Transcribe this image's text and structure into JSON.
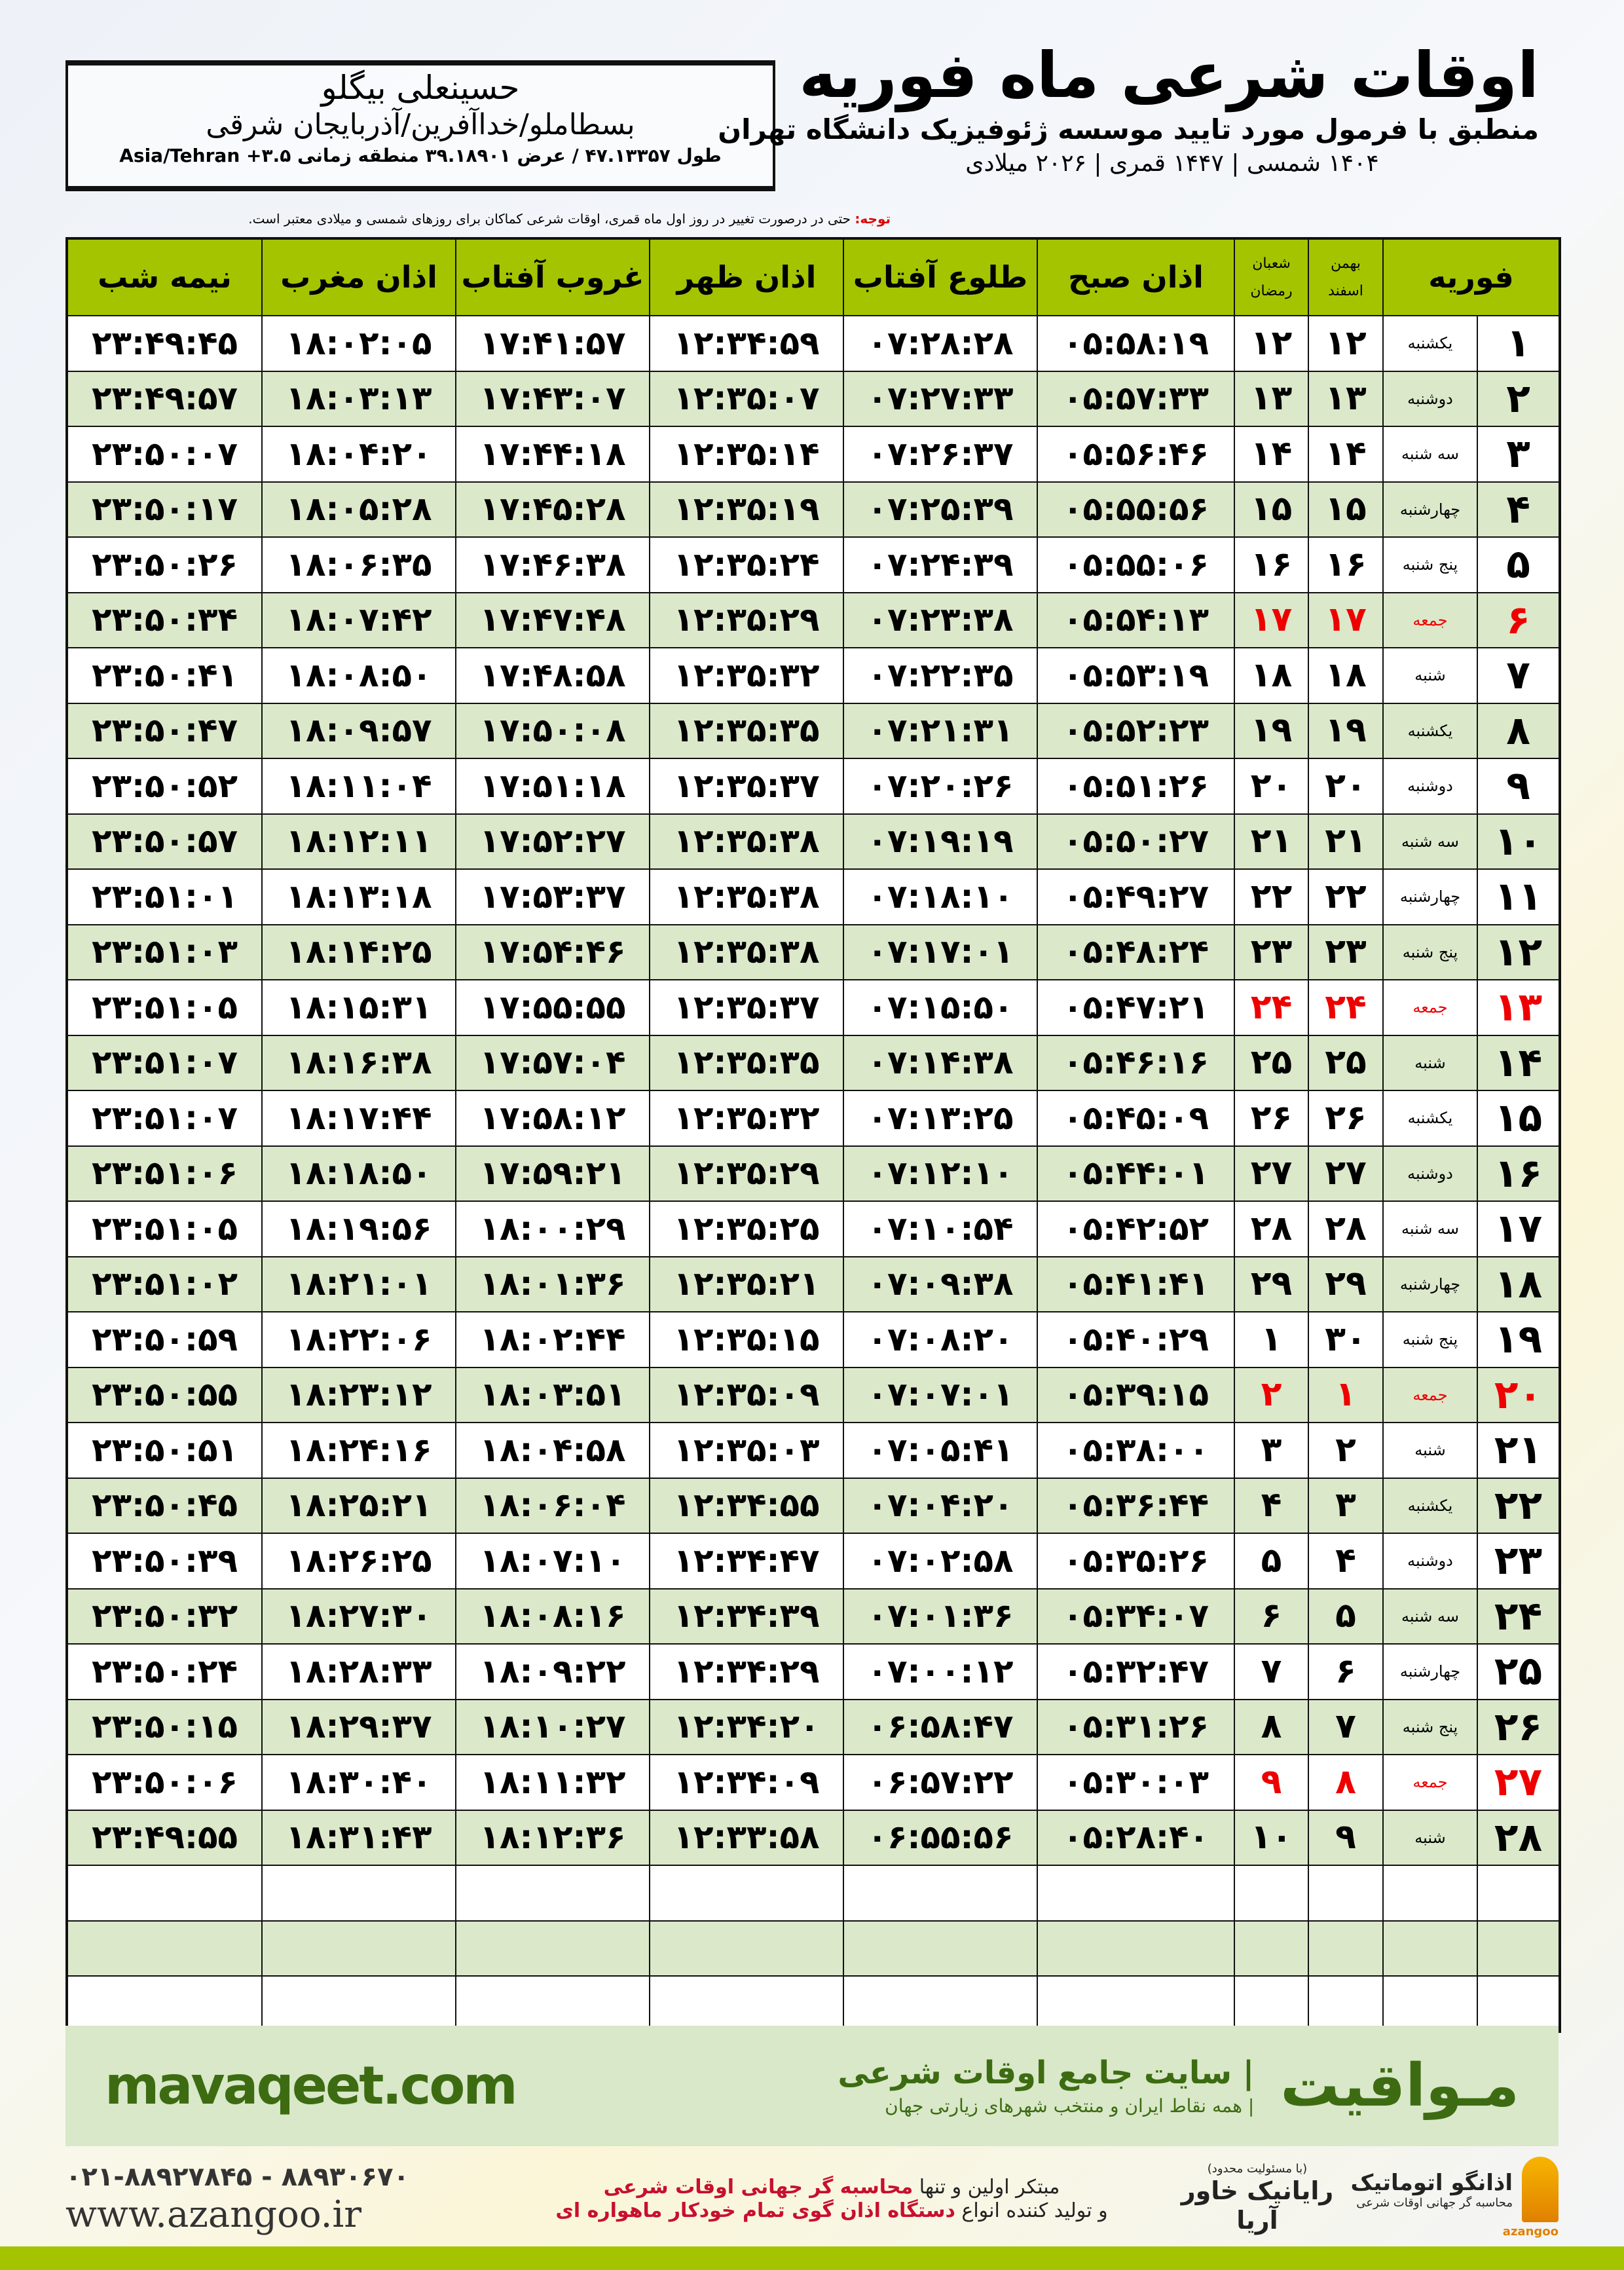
{
  "header": {
    "title": "اوقات شرعی ماه فوریه",
    "subtitle": "منطبق با فرمول مورد تایید موسسه ژئوفیزیک دانشگاه تهران",
    "years": "۱۴۰۴ شمسی | ۱۴۴۷ قمری | ۲۰۲۶ میلادی"
  },
  "location": {
    "name": "حسینعلی بیگلو",
    "place": "بسطاملو/خداآفرین/آذربایجان شرقی",
    "coords": "طول ۴۷.۱۳۳۵۷ / عرض ۳۹.۱۸۹۰۱ منطقه زمانی ۳.۵+ Asia/Tehran"
  },
  "note": {
    "label": "توجه:",
    "text": " حتی در درصورت تغییر در روز اول ماه قمری، اوقات شرعی کماکان برای روزهای شمسی و میلادی معتبر است."
  },
  "table": {
    "headers": {
      "month": "فوریه",
      "shamsi_top": "بهمن",
      "shamsi_bottom": "اسفند",
      "qamari_top": "شعبان",
      "qamari_bottom": "رمضان",
      "sobh": "اذان صبح",
      "tolu": "طلوع آفتاب",
      "zohr": "اذان ظهر",
      "ghurub": "غروب آفتاب",
      "maghrib": "اذان مغرب",
      "nime": "نیمه شب"
    },
    "highlight_color": "#e00000",
    "rows": [
      [
        "۱",
        "یکشنبه",
        "۱۲",
        "۱۲",
        "۰۵:۵۸:۱۹",
        "۰۷:۲۸:۲۸",
        "۱۲:۳۴:۵۹",
        "۱۷:۴۱:۵۷",
        "۱۸:۰۲:۰۵",
        "۲۳:۴۹:۴۵"
      ],
      [
        "۲",
        "دوشنبه",
        "۱۳",
        "۱۳",
        "۰۵:۵۷:۳۳",
        "۰۷:۲۷:۳۳",
        "۱۲:۳۵:۰۷",
        "۱۷:۴۳:۰۷",
        "۱۸:۰۳:۱۳",
        "۲۳:۴۹:۵۷"
      ],
      [
        "۳",
        "سه شنبه",
        "۱۴",
        "۱۴",
        "۰۵:۵۶:۴۶",
        "۰۷:۲۶:۳۷",
        "۱۲:۳۵:۱۴",
        "۱۷:۴۴:۱۸",
        "۱۸:۰۴:۲۰",
        "۲۳:۵۰:۰۷"
      ],
      [
        "۴",
        "چهارشنبه",
        "۱۵",
        "۱۵",
        "۰۵:۵۵:۵۶",
        "۰۷:۲۵:۳۹",
        "۱۲:۳۵:۱۹",
        "۱۷:۴۵:۲۸",
        "۱۸:۰۵:۲۸",
        "۲۳:۵۰:۱۷"
      ],
      [
        "۵",
        "پنج شنبه",
        "۱۶",
        "۱۶",
        "۰۵:۵۵:۰۶",
        "۰۷:۲۴:۳۹",
        "۱۲:۳۵:۲۴",
        "۱۷:۴۶:۳۸",
        "۱۸:۰۶:۳۵",
        "۲۳:۵۰:۲۶"
      ],
      [
        "۶",
        "جمعه",
        "۱۷",
        "۱۷",
        "۰۵:۵۴:۱۳",
        "۰۷:۲۳:۳۸",
        "۱۲:۳۵:۲۹",
        "۱۷:۴۷:۴۸",
        "۱۸:۰۷:۴۲",
        "۲۳:۵۰:۳۴"
      ],
      [
        "۷",
        "شنبه",
        "۱۸",
        "۱۸",
        "۰۵:۵۳:۱۹",
        "۰۷:۲۲:۳۵",
        "۱۲:۳۵:۳۲",
        "۱۷:۴۸:۵۸",
        "۱۸:۰۸:۵۰",
        "۲۳:۵۰:۴۱"
      ],
      [
        "۸",
        "یکشنبه",
        "۱۹",
        "۱۹",
        "۰۵:۵۲:۲۳",
        "۰۷:۲۱:۳۱",
        "۱۲:۳۵:۳۵",
        "۱۷:۵۰:۰۸",
        "۱۸:۰۹:۵۷",
        "۲۳:۵۰:۴۷"
      ],
      [
        "۹",
        "دوشنبه",
        "۲۰",
        "۲۰",
        "۰۵:۵۱:۲۶",
        "۰۷:۲۰:۲۶",
        "۱۲:۳۵:۳۷",
        "۱۷:۵۱:۱۸",
        "۱۸:۱۱:۰۴",
        "۲۳:۵۰:۵۲"
      ],
      [
        "۱۰",
        "سه شنبه",
        "۲۱",
        "۲۱",
        "۰۵:۵۰:۲۷",
        "۰۷:۱۹:۱۹",
        "۱۲:۳۵:۳۸",
        "۱۷:۵۲:۲۷",
        "۱۸:۱۲:۱۱",
        "۲۳:۵۰:۵۷"
      ],
      [
        "۱۱",
        "چهارشنبه",
        "۲۲",
        "۲۲",
        "۰۵:۴۹:۲۷",
        "۰۷:۱۸:۱۰",
        "۱۲:۳۵:۳۸",
        "۱۷:۵۳:۳۷",
        "۱۸:۱۳:۱۸",
        "۲۳:۵۱:۰۱"
      ],
      [
        "۱۲",
        "پنج شنبه",
        "۲۳",
        "۲۳",
        "۰۵:۴۸:۲۴",
        "۰۷:۱۷:۰۱",
        "۱۲:۳۵:۳۸",
        "۱۷:۵۴:۴۶",
        "۱۸:۱۴:۲۵",
        "۲۳:۵۱:۰۳"
      ],
      [
        "۱۳",
        "جمعه",
        "۲۴",
        "۲۴",
        "۰۵:۴۷:۲۱",
        "۰۷:۱۵:۵۰",
        "۱۲:۳۵:۳۷",
        "۱۷:۵۵:۵۵",
        "۱۸:۱۵:۳۱",
        "۲۳:۵۱:۰۵"
      ],
      [
        "۱۴",
        "شنبه",
        "۲۵",
        "۲۵",
        "۰۵:۴۶:۱۶",
        "۰۷:۱۴:۳۸",
        "۱۲:۳۵:۳۵",
        "۱۷:۵۷:۰۴",
        "۱۸:۱۶:۳۸",
        "۲۳:۵۱:۰۷"
      ],
      [
        "۱۵",
        "یکشنبه",
        "۲۶",
        "۲۶",
        "۰۵:۴۵:۰۹",
        "۰۷:۱۳:۲۵",
        "۱۲:۳۵:۳۲",
        "۱۷:۵۸:۱۲",
        "۱۸:۱۷:۴۴",
        "۲۳:۵۱:۰۷"
      ],
      [
        "۱۶",
        "دوشنبه",
        "۲۷",
        "۲۷",
        "۰۵:۴۴:۰۱",
        "۰۷:۱۲:۱۰",
        "۱۲:۳۵:۲۹",
        "۱۷:۵۹:۲۱",
        "۱۸:۱۸:۵۰",
        "۲۳:۵۱:۰۶"
      ],
      [
        "۱۷",
        "سه شنبه",
        "۲۸",
        "۲۸",
        "۰۵:۴۲:۵۲",
        "۰۷:۱۰:۵۴",
        "۱۲:۳۵:۲۵",
        "۱۸:۰۰:۲۹",
        "۱۸:۱۹:۵۶",
        "۲۳:۵۱:۰۵"
      ],
      [
        "۱۸",
        "چهارشنبه",
        "۲۹",
        "۲۹",
        "۰۵:۴۱:۴۱",
        "۰۷:۰۹:۳۸",
        "۱۲:۳۵:۲۱",
        "۱۸:۰۱:۳۶",
        "۱۸:۲۱:۰۱",
        "۲۳:۵۱:۰۲"
      ],
      [
        "۱۹",
        "پنج شنبه",
        "۳۰",
        "۱",
        "۰۵:۴۰:۲۹",
        "۰۷:۰۸:۲۰",
        "۱۲:۳۵:۱۵",
        "۱۸:۰۲:۴۴",
        "۱۸:۲۲:۰۶",
        "۲۳:۵۰:۵۹"
      ],
      [
        "۲۰",
        "جمعه",
        "۱",
        "۲",
        "۰۵:۳۹:۱۵",
        "۰۷:۰۷:۰۱",
        "۱۲:۳۵:۰۹",
        "۱۸:۰۳:۵۱",
        "۱۸:۲۳:۱۲",
        "۲۳:۵۰:۵۵"
      ],
      [
        "۲۱",
        "شنبه",
        "۲",
        "۳",
        "۰۵:۳۸:۰۰",
        "۰۷:۰۵:۴۱",
        "۱۲:۳۵:۰۳",
        "۱۸:۰۴:۵۸",
        "۱۸:۲۴:۱۶",
        "۲۳:۵۰:۵۱"
      ],
      [
        "۲۲",
        "یکشنبه",
        "۳",
        "۴",
        "۰۵:۳۶:۴۴",
        "۰۷:۰۴:۲۰",
        "۱۲:۳۴:۵۵",
        "۱۸:۰۶:۰۴",
        "۱۸:۲۵:۲۱",
        "۲۳:۵۰:۴۵"
      ],
      [
        "۲۳",
        "دوشنبه",
        "۴",
        "۵",
        "۰۵:۳۵:۲۶",
        "۰۷:۰۲:۵۸",
        "۱۲:۳۴:۴۷",
        "۱۸:۰۷:۱۰",
        "۱۸:۲۶:۲۵",
        "۲۳:۵۰:۳۹"
      ],
      [
        "۲۴",
        "سه شنبه",
        "۵",
        "۶",
        "۰۵:۳۴:۰۷",
        "۰۷:۰۱:۳۶",
        "۱۲:۳۴:۳۹",
        "۱۸:۰۸:۱۶",
        "۱۸:۲۷:۳۰",
        "۲۳:۵۰:۳۲"
      ],
      [
        "۲۵",
        "چهارشنبه",
        "۶",
        "۷",
        "۰۵:۳۲:۴۷",
        "۰۷:۰۰:۱۲",
        "۱۲:۳۴:۲۹",
        "۱۸:۰۹:۲۲",
        "۱۸:۲۸:۳۳",
        "۲۳:۵۰:۲۴"
      ],
      [
        "۲۶",
        "پنج شنبه",
        "۷",
        "۸",
        "۰۵:۳۱:۲۶",
        "۰۶:۵۸:۴۷",
        "۱۲:۳۴:۲۰",
        "۱۸:۱۰:۲۷",
        "۱۸:۲۹:۳۷",
        "۲۳:۵۰:۱۵"
      ],
      [
        "۲۷",
        "جمعه",
        "۸",
        "۹",
        "۰۵:۳۰:۰۳",
        "۰۶:۵۷:۲۲",
        "۱۲:۳۴:۰۹",
        "۱۸:۱۱:۳۲",
        "۱۸:۳۰:۴۰",
        "۲۳:۵۰:۰۶"
      ],
      [
        "۲۸",
        "شنبه",
        "۹",
        "۱۰",
        "۰۵:۲۸:۴۰",
        "۰۶:۵۵:۵۶",
        "۱۲:۳۳:۵۸",
        "۱۸:۱۲:۳۶",
        "۱۸:۳۱:۴۳",
        "۲۳:۴۹:۵۵"
      ]
    ]
  },
  "footer": {
    "site": "mavaqeet.com",
    "brand": "مـواقیت",
    "tagline": "| سایت جامع اوقات شرعی",
    "tagsub": "| همه نقاط ایران و منتخب شهرهای زیارتی جهان"
  },
  "ads": {
    "phone": "۰۲۱-۸۸۹۲۷۸۴۵ - ۸۸۹۳۰۶۷۰",
    "web": "www.azangoo.ir",
    "promo1_a": "مبتکر اولین و تنها ",
    "promo1_b": "محاسبه گر جهانی اوقات شرعی",
    "promo2_a": "و تولید کننده انواع ",
    "promo2_b": "دستگاه اذان گوی تمام خودکار ماهواره ای",
    "logo1_small": "(با مسئولیت محدود)",
    "logo1": "رایانیک خاور آریا",
    "logo2": "اذانگو اتوماتیک",
    "logo2_sub": "محاسبه گر جهانی اوقات شرعی",
    "logo2_en": "azangoo"
  }
}
